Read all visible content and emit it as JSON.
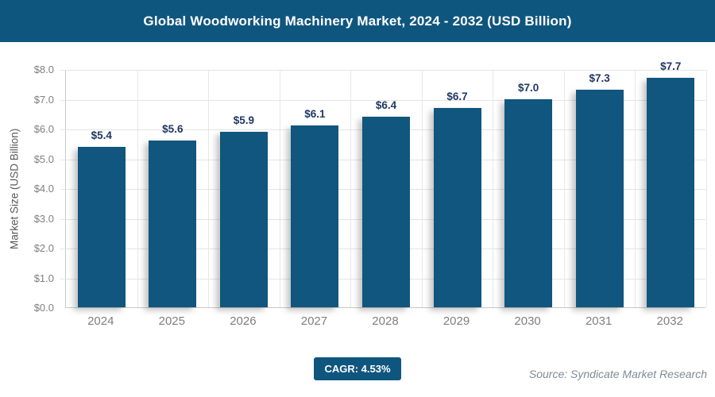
{
  "header": {
    "title": "Global Woodworking Machinery Market, 2024 - 2032 (USD Billion)"
  },
  "chart_data": {
    "type": "bar",
    "title": "Global Woodworking Machinery Market, 2024 - 2032 (USD Billion)",
    "categories": [
      "2024",
      "2025",
      "2026",
      "2027",
      "2028",
      "2029",
      "2030",
      "2031",
      "2032"
    ],
    "values": [
      5.4,
      5.6,
      5.9,
      6.1,
      6.4,
      6.7,
      7.0,
      7.3,
      7.7
    ],
    "value_labels": [
      "$5.4",
      "$5.6",
      "$5.9",
      "$6.1",
      "$6.4",
      "$6.7",
      "$7.0",
      "$7.3",
      "$7.7"
    ],
    "xlabel": "",
    "ylabel": "Market Size (USD Billion)",
    "ylim": [
      0,
      8
    ],
    "ytick_step": 1,
    "ytick_labels_top_to_bottom": [
      "$8.0",
      "$7.0",
      "$6.0",
      "$5.0",
      "$4.0",
      "$3.0",
      "$2.0",
      "$1.0",
      "$0.0"
    ],
    "grid": true,
    "legend": "none"
  },
  "footer": {
    "cagr_label": "CAGR: 4.53%",
    "source": "Source: Syndicate Market Research"
  },
  "colors": {
    "brand_blue": "#0F567F",
    "bar_blue": "#10567E",
    "value_label_navy": "#1F3864",
    "axis_text_gray": "#7F7F7F",
    "gridline_gray": "#E4E4E4",
    "source_gray": "#7E8B97"
  }
}
